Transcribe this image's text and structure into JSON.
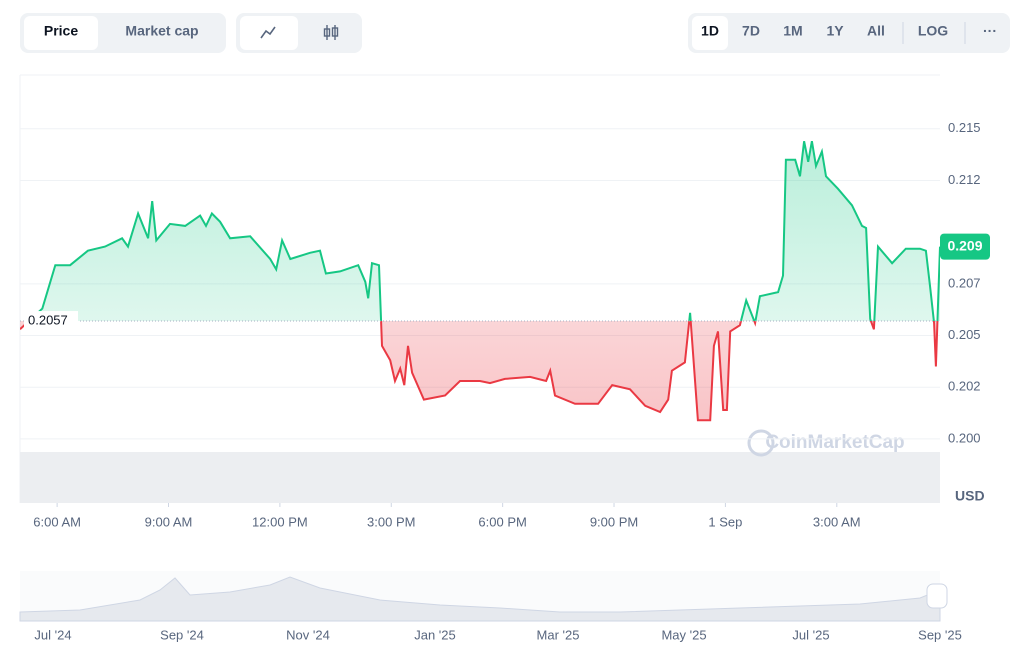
{
  "toolbar": {
    "tabs": [
      "Price",
      "Market cap"
    ],
    "ranges": [
      "1D",
      "7D",
      "1M",
      "1Y",
      "All"
    ],
    "log": "LOG",
    "more": "···"
  },
  "chart_data": {
    "type": "line",
    "x": [
      5.0,
      5.6,
      5.95,
      6.35,
      6.83,
      7.29,
      7.75,
      7.91,
      8.18,
      8.45,
      8.56,
      8.67,
      9.04,
      9.45,
      9.85,
      10.01,
      10.17,
      10.39,
      10.66,
      11.2,
      11.74,
      11.9,
      12.06,
      12.28,
      12.81,
      13.08,
      13.24,
      13.62,
      14.11,
      14.3,
      14.38,
      14.48,
      14.67,
      14.75,
      14.97,
      15.1,
      15.24,
      15.35,
      15.45,
      15.56,
      15.88,
      16.45,
      16.85,
      17.39,
      17.66,
      18.06,
      18.74,
      19.17,
      19.28,
      19.41,
      19.95,
      20.57,
      20.95,
      21.43,
      21.84,
      22.24,
      22.46,
      22.56,
      22.91,
      23.05,
      23.26,
      23.59,
      23.69,
      23.8,
      23.94,
      24.04,
      24.13,
      24.39,
      24.56,
      24.8,
      24.93,
      25.42,
      25.55,
      25.63,
      25.88,
      26.01,
      26.12,
      26.23,
      26.33,
      26.44,
      26.6,
      26.71,
      27.03,
      27.41,
      27.68,
      27.79,
      27.9,
      28.0,
      28.11,
      28.49,
      28.86,
      29.24,
      29.4,
      29.51,
      29.62,
      29.67,
      29.78
    ],
    "values": [
      0.2053,
      0.2063,
      0.2084,
      0.2084,
      0.2091,
      0.2093,
      0.2097,
      0.2093,
      0.2109,
      0.2097,
      0.2115,
      0.2096,
      0.2104,
      0.2103,
      0.2108,
      0.2103,
      0.2109,
      0.2105,
      0.2097,
      0.2098,
      0.2087,
      0.2082,
      0.2096,
      0.2087,
      0.209,
      0.2091,
      0.208,
      0.2081,
      0.2084,
      0.2076,
      0.2068,
      0.2085,
      0.2084,
      0.2045,
      0.2038,
      0.2028,
      0.2034,
      0.2026,
      0.2045,
      0.2032,
      0.2019,
      0.2021,
      0.2028,
      0.2028,
      0.2027,
      0.2029,
      0.203,
      0.2028,
      0.2033,
      0.2021,
      0.2017,
      0.2017,
      0.2026,
      0.2024,
      0.2016,
      0.2013,
      0.2019,
      0.2033,
      0.2037,
      0.2061,
      0.2009,
      0.2009,
      0.2045,
      0.2052,
      0.2014,
      0.2014,
      0.2052,
      0.2055,
      0.2067,
      0.2056,
      0.2069,
      0.2071,
      0.2079,
      0.2135,
      0.2135,
      0.2127,
      0.2144,
      0.2134,
      0.2144,
      0.2132,
      0.2139,
      0.2127,
      0.2121,
      0.2113,
      0.2103,
      0.2102,
      0.2058,
      0.2053,
      0.2093,
      0.2085,
      0.2092,
      0.2092,
      0.2091,
      0.2074,
      0.2056,
      0.2035,
      0.2093
    ],
    "up_color": "#16c784",
    "down_color": "#ea3943",
    "reference_price": 0.2057,
    "current_price": 0.2093,
    "current_price_label": "0.209",
    "xlim": [
      5,
      29.78
    ],
    "xticks": [
      {
        "value": 6,
        "label": "6:00 AM"
      },
      {
        "value": 9,
        "label": "9:00 AM"
      },
      {
        "value": 12,
        "label": "12:00 PM"
      },
      {
        "value": 15,
        "label": "3:00 PM"
      },
      {
        "value": 18,
        "label": "6:00 PM"
      },
      {
        "value": 21,
        "label": "9:00 PM"
      },
      {
        "value": 24,
        "label": "1 Sep"
      },
      {
        "value": 27,
        "label": "3:00 AM"
      }
    ],
    "ylim": [
      0.1969,
      0.2176
    ],
    "yticks": [
      {
        "value": 0.2,
        "label": "0.200"
      },
      {
        "value": 0.2025,
        "label": "0.202"
      },
      {
        "value": 0.205,
        "label": "0.205"
      },
      {
        "value": 0.2075,
        "label": "0.207"
      },
      {
        "value": 0.2125,
        "label": "0.212"
      },
      {
        "value": 0.215,
        "label": "0.215"
      }
    ],
    "grid": true,
    "unit": "USD",
    "watermark": "CoinMarketCap",
    "navigator_labels": [
      "Jul '24",
      "Sep '24",
      "Nov '24",
      "Jan '25",
      "Mar '25",
      "May '25",
      "Jul '25",
      "Sep '25"
    ]
  }
}
